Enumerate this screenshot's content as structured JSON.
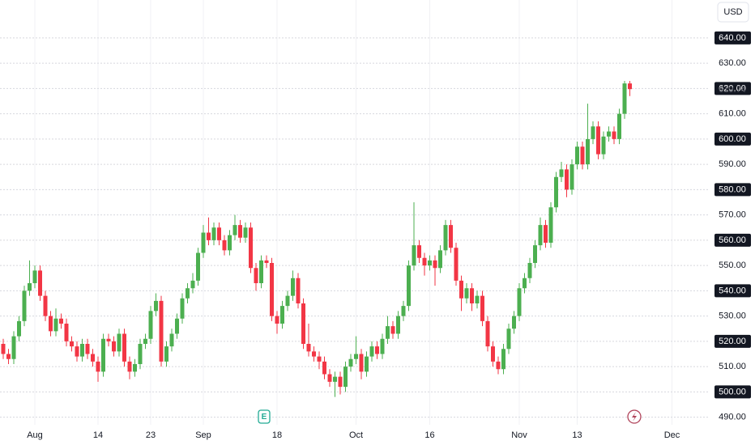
{
  "chart_data": {
    "type": "candlestick",
    "currency": "USD",
    "earnings_marker": "E",
    "up_color": "#4caf50",
    "down_color": "#f23645",
    "grid": true,
    "ylim": [
      487,
      655
    ],
    "yticks": [
      {
        "value": 490,
        "label": "490.00"
      },
      {
        "value": 500,
        "label": "500.00"
      },
      {
        "value": 510,
        "label": "510.00"
      },
      {
        "value": 520,
        "label": "520.00"
      },
      {
        "value": 530,
        "label": "530.00"
      },
      {
        "value": 540,
        "label": "540.00"
      },
      {
        "value": 550,
        "label": "550.00"
      },
      {
        "value": 560,
        "label": "560.00"
      },
      {
        "value": 570,
        "label": "570.00"
      },
      {
        "value": 580,
        "label": "580.00"
      },
      {
        "value": 590,
        "label": "590.00"
      },
      {
        "value": 600,
        "label": "600.00"
      },
      {
        "value": 610,
        "label": "610.00"
      },
      {
        "value": 620,
        "label": "620.00"
      },
      {
        "value": 630,
        "label": "630.00"
      },
      {
        "value": 640,
        "label": "640.00"
      }
    ],
    "last_price": {
      "value": 619.74,
      "label": "619.74"
    },
    "categories": [
      null,
      null,
      null,
      null,
      null,
      null,
      "Aug",
      null,
      null,
      null,
      null,
      null,
      null,
      null,
      null,
      null,
      null,
      null,
      "14",
      null,
      null,
      null,
      null,
      null,
      null,
      null,
      null,
      null,
      "23",
      null,
      null,
      null,
      null,
      null,
      null,
      null,
      null,
      null,
      "Sep",
      null,
      null,
      null,
      null,
      null,
      null,
      null,
      null,
      null,
      null,
      null,
      null,
      null,
      "18",
      null,
      null,
      null,
      null,
      null,
      null,
      null,
      null,
      null,
      null,
      null,
      null,
      null,
      null,
      "Oct",
      null,
      null,
      null,
      null,
      null,
      null,
      null,
      null,
      null,
      null,
      null,
      null,
      null,
      "16",
      null,
      null,
      null,
      null,
      null,
      null,
      null,
      null,
      null,
      null,
      null,
      null,
      null,
      null,
      null,
      null,
      "Nov",
      null,
      null,
      null,
      null,
      null,
      null,
      null,
      null,
      null,
      null,
      "13",
      null,
      null,
      null,
      null,
      null,
      null,
      null,
      null,
      null,
      null,
      null,
      null,
      null,
      null,
      null,
      null,
      null,
      "Dec"
    ],
    "open": [
      519,
      515,
      513,
      522,
      528,
      540,
      543,
      548,
      538,
      530,
      524,
      529,
      527,
      520,
      518,
      514,
      519,
      515,
      512,
      508,
      521,
      520,
      516,
      523,
      512,
      508,
      511,
      519,
      521,
      532,
      536,
      512,
      518,
      523,
      529,
      537,
      541,
      544,
      555,
      563,
      560,
      565,
      560,
      556,
      562,
      566,
      561,
      565,
      549,
      543,
      552,
      551,
      530,
      527,
      534,
      538,
      545,
      535,
      519,
      516,
      514,
      512,
      507,
      504,
      506,
      502,
      510,
      513,
      515,
      508,
      514,
      518,
      515,
      521,
      526,
      523,
      530,
      534,
      550,
      558,
      553,
      550,
      552,
      549,
      556,
      566,
      557,
      544,
      537,
      541,
      535,
      538,
      528,
      518,
      512,
      509,
      517,
      525,
      530,
      541,
      545,
      551,
      558,
      566,
      559,
      573,
      585,
      588,
      580,
      590,
      597,
      590,
      600,
      605,
      594,
      601,
      603,
      600,
      610,
      622,
      null,
      null,
      null,
      null,
      null,
      null,
      null,
      null
    ],
    "high": [
      521,
      517,
      524,
      530,
      542,
      552,
      550,
      550,
      540,
      532,
      533,
      531,
      529,
      522,
      520,
      521,
      521,
      517,
      514,
      523,
      523,
      522,
      525,
      525,
      514,
      513,
      521,
      523,
      534,
      539,
      538,
      520,
      525,
      531,
      539,
      543,
      547,
      557,
      566,
      569,
      567,
      567,
      562,
      564,
      570,
      568,
      567,
      567,
      551,
      554,
      554,
      553,
      532,
      536,
      540,
      548,
      547,
      537,
      527,
      518,
      516,
      514,
      509,
      508,
      508,
      512,
      515,
      522,
      517,
      516,
      520,
      520,
      523,
      530,
      528,
      532,
      536,
      552,
      575,
      560,
      555,
      554,
      554,
      558,
      568,
      568,
      559,
      546,
      543,
      543,
      540,
      540,
      530,
      520,
      514,
      519,
      527,
      532,
      543,
      547,
      553,
      560,
      569,
      568,
      575,
      587,
      591,
      590,
      592,
      599,
      599,
      614,
      607,
      607,
      603,
      605,
      605,
      612,
      623,
      623,
      null,
      null,
      null,
      null,
      null,
      null,
      null,
      null
    ],
    "low": [
      513,
      511,
      511,
      520,
      526,
      538,
      541,
      536,
      528,
      522,
      522,
      525,
      518,
      516,
      512,
      512,
      513,
      510,
      504,
      506,
      518,
      514,
      514,
      510,
      505,
      506,
      509,
      517,
      519,
      530,
      510,
      510,
      516,
      521,
      527,
      535,
      539,
      542,
      553,
      558,
      558,
      558,
      554,
      554,
      560,
      559,
      559,
      547,
      540,
      541,
      549,
      528,
      523,
      525,
      532,
      536,
      533,
      517,
      514,
      512,
      509,
      505,
      502,
      498,
      499,
      500,
      508,
      511,
      505,
      506,
      512,
      513,
      513,
      519,
      521,
      521,
      528,
      532,
      548,
      551,
      546,
      548,
      542,
      547,
      554,
      555,
      542,
      532,
      535,
      532,
      533,
      526,
      516,
      510,
      507,
      507,
      515,
      523,
      528,
      539,
      543,
      549,
      556,
      557,
      557,
      571,
      583,
      577,
      578,
      588,
      588,
      588,
      598,
      592,
      592,
      599,
      598,
      598,
      608,
      617,
      null,
      null,
      null,
      null,
      null,
      null,
      null,
      null
    ],
    "close": [
      515,
      513,
      522,
      528,
      540,
      543,
      548,
      538,
      530,
      524,
      529,
      527,
      520,
      518,
      514,
      519,
      515,
      512,
      508,
      521,
      520,
      516,
      523,
      512,
      508,
      511,
      519,
      521,
      532,
      536,
      512,
      518,
      523,
      529,
      537,
      541,
      544,
      555,
      563,
      560,
      565,
      560,
      556,
      562,
      566,
      561,
      565,
      549,
      543,
      552,
      551,
      530,
      527,
      534,
      538,
      545,
      535,
      519,
      516,
      514,
      512,
      507,
      504,
      506,
      502,
      510,
      513,
      515,
      508,
      514,
      518,
      515,
      521,
      526,
      523,
      530,
      534,
      550,
      558,
      553,
      550,
      552,
      549,
      556,
      566,
      557,
      544,
      537,
      541,
      535,
      538,
      528,
      518,
      512,
      509,
      517,
      525,
      530,
      541,
      545,
      551,
      558,
      566,
      559,
      573,
      585,
      588,
      580,
      590,
      597,
      590,
      600,
      605,
      594,
      601,
      603,
      600,
      610,
      622,
      619.74,
      null,
      null,
      null,
      null,
      null,
      null,
      null,
      null
    ]
  }
}
